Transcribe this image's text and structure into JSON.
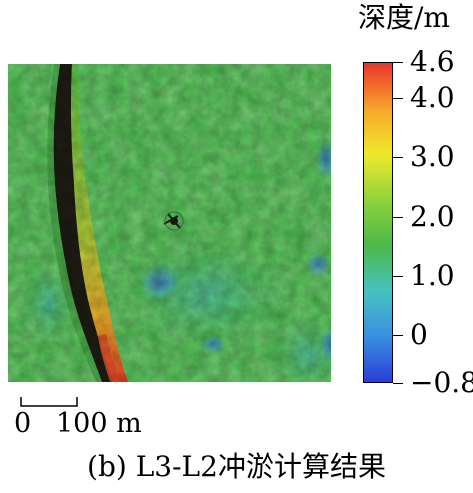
{
  "colorbar": {
    "title": "深度/m",
    "ticks": [
      "4.6",
      "4.0",
      "3.0",
      "2.0",
      "1.0",
      "0",
      "−0.8"
    ],
    "tick_values": [
      4.6,
      4.0,
      3.0,
      2.0,
      1.0,
      0,
      -0.8
    ],
    "range": [
      -0.8,
      4.6
    ],
    "colors": [
      "#2b3dd8",
      "#3a8fe0",
      "#46c2c0",
      "#4db84a",
      "#8fd43c",
      "#eeea2a",
      "#f6a52a",
      "#e8342a"
    ]
  },
  "scale_bar": {
    "start_label": "0",
    "end_label": "100 m"
  },
  "caption": "(b) L3-L2冲淤计算结果",
  "map": {
    "background_color": "#4ec252",
    "channel_edge_color": "#1a1a12",
    "channel_fill_colors": [
      "#e8a32c",
      "#f09a2a",
      "#e8542a"
    ]
  }
}
